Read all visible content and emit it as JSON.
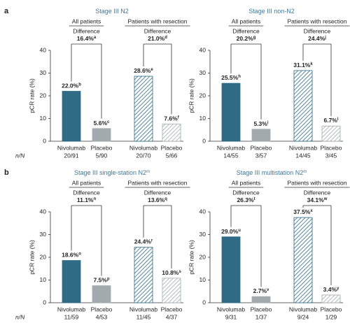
{
  "rows": [
    {
      "label": "a",
      "n_label": "n/N"
    },
    {
      "label": "b",
      "n_label": "n/N"
    }
  ],
  "chart_data": [
    {
      "type": "bar",
      "title": "Stage III N2",
      "ylabel": "pCR rate (%)",
      "categories": [
        "Nivolumab",
        "Placebo",
        "Nivolumab",
        "Placebo"
      ],
      "counts": [
        "20/91",
        "5/90",
        "20/70",
        "5/66"
      ],
      "values": [
        22.0,
        5.6,
        28.6,
        7.6
      ],
      "value_labels": [
        "22.0%",
        "5.6%",
        "28.6%",
        "7.6%"
      ],
      "value_label_notes": [
        "b",
        "c",
        "e",
        "f"
      ],
      "colors": [
        "#2f6b84",
        "#a3aaad",
        "#2f6b84",
        "#a3aaad"
      ],
      "hatched": [
        false,
        false,
        true,
        true
      ],
      "groups": [
        {
          "name": "All patients",
          "difference_label": "Difference",
          "difference": "16.4%",
          "difference_note": "a"
        },
        {
          "name": "Patients with resection",
          "difference_label": "Difference",
          "difference": "21.0%",
          "difference_note": "d"
        }
      ],
      "ylim": [
        0,
        40
      ],
      "yticks": [
        0,
        10,
        20,
        30,
        40
      ]
    },
    {
      "type": "bar",
      "title": "Stage III non-N2",
      "ylabel": "pCR rate (%)",
      "categories": [
        "Nivolumab",
        "Placebo",
        "Nivolumab",
        "Placebo"
      ],
      "counts": [
        "14/55",
        "3/57",
        "14/45",
        "3/45"
      ],
      "values": [
        25.5,
        5.3,
        31.1,
        6.7
      ],
      "value_labels": [
        "25.5%",
        "5.3%",
        "31.1%",
        "6.7%"
      ],
      "value_label_notes": [
        "h",
        "i",
        "k",
        "l"
      ],
      "colors": [
        "#2f6b84",
        "#a3aaad",
        "#2f6b84",
        "#a3aaad"
      ],
      "hatched": [
        false,
        false,
        true,
        true
      ],
      "groups": [
        {
          "name": "All patients",
          "difference_label": "Difference",
          "difference": "20.2%",
          "difference_note": "g"
        },
        {
          "name": "Patients with resection",
          "difference_label": "Difference",
          "difference": "24.4%",
          "difference_note": "j"
        }
      ],
      "ylim": [
        0,
        40
      ],
      "yticks": [
        0,
        10,
        20,
        30,
        40
      ]
    },
    {
      "type": "bar",
      "title": "Stage III single-station N2",
      "title_note": "m",
      "ylabel": "pCR rate (%)",
      "categories": [
        "Nivolumab",
        "Placebo",
        "Nivolumab",
        "Placebo"
      ],
      "counts": [
        "11/59",
        "4/53",
        "11/45",
        "4/37"
      ],
      "values": [
        18.6,
        7.5,
        24.4,
        10.8
      ],
      "value_labels": [
        "18.6%",
        "7.5%",
        "24.4%",
        "10.8%"
      ],
      "value_label_notes": [
        "o",
        "p",
        "r",
        "s"
      ],
      "colors": [
        "#2f6b84",
        "#a3aaad",
        "#2f6b84",
        "#a3aaad"
      ],
      "hatched": [
        false,
        false,
        true,
        true
      ],
      "groups": [
        {
          "name": "All patients",
          "difference_label": "Difference",
          "difference": "11.1%",
          "difference_note": "n"
        },
        {
          "name": "Patients with resection",
          "difference_label": "Difference",
          "difference": "13.6%",
          "difference_note": "q"
        }
      ],
      "ylim": [
        0,
        40
      ],
      "yticks": [
        0,
        10,
        20,
        30,
        40
      ]
    },
    {
      "type": "bar",
      "title": "Stage III multistation N2",
      "title_note": "m",
      "ylabel": "pCR rate (%)",
      "categories": [
        "Nivolumab",
        "Placebo",
        "Nivolumab",
        "Placebo"
      ],
      "counts": [
        "9/31",
        "1/37",
        "9/24",
        "1/29"
      ],
      "values": [
        29.0,
        2.7,
        37.5,
        3.4
      ],
      "value_labels": [
        "29.0%",
        "2.7%",
        "37.5%",
        "3.4%"
      ],
      "value_label_notes": [
        "u",
        "v",
        "x",
        "y"
      ],
      "colors": [
        "#2f6b84",
        "#a3aaad",
        "#2f6b84",
        "#a3aaad"
      ],
      "hatched": [
        false,
        false,
        true,
        true
      ],
      "groups": [
        {
          "name": "All patients",
          "difference_label": "Difference",
          "difference": "26.3%",
          "difference_note": "t"
        },
        {
          "name": "Patients with resection",
          "difference_label": "Difference",
          "difference": "34.1%",
          "difference_note": "w"
        }
      ],
      "ylim": [
        0,
        40
      ],
      "yticks": [
        0,
        10,
        20,
        30,
        40
      ]
    }
  ]
}
